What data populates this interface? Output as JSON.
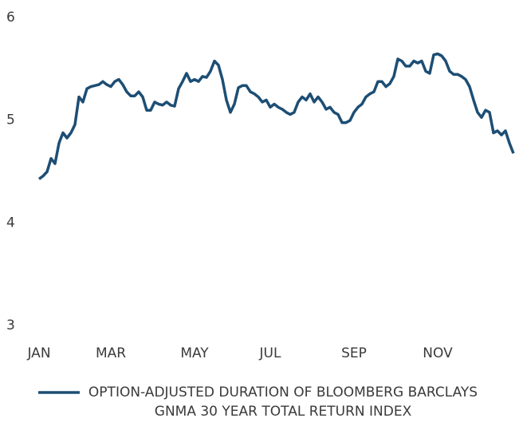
{
  "chart_data": {
    "type": "line",
    "categories": [
      "JAN",
      null,
      null,
      null,
      null,
      null,
      null,
      null,
      null,
      null,
      null,
      null,
      null,
      null,
      null,
      null,
      null,
      null,
      "MAR",
      null,
      null,
      null,
      null,
      null,
      null,
      null,
      null,
      null,
      null,
      null,
      null,
      null,
      null,
      null,
      null,
      null,
      null,
      null,
      null,
      "MAY",
      null,
      null,
      null,
      null,
      null,
      null,
      null,
      null,
      null,
      null,
      null,
      null,
      null,
      null,
      null,
      null,
      null,
      null,
      "JUL",
      null,
      null,
      null,
      null,
      null,
      null,
      null,
      null,
      null,
      null,
      null,
      null,
      null,
      null,
      null,
      null,
      null,
      null,
      null,
      null,
      "SEP",
      null,
      null,
      null,
      null,
      null,
      null,
      null,
      null,
      null,
      null,
      null,
      null,
      null,
      null,
      null,
      null,
      null,
      null,
      null,
      null,
      "NOV",
      null,
      null,
      null,
      null,
      null,
      null,
      null,
      null,
      null,
      null,
      null,
      null,
      null,
      null,
      null,
      null,
      null,
      null,
      null
    ],
    "series": [
      {
        "name": "OPTION-ADJUSTED DURATION OF BLOOMBERG BARCLAYS GNMA 30 YEAR TOTAL RETURN INDEX",
        "color": "#1d4e74",
        "values": [
          4.45,
          4.48,
          4.52,
          4.65,
          4.6,
          4.8,
          4.9,
          4.85,
          4.9,
          4.98,
          5.25,
          5.2,
          5.33,
          5.35,
          5.36,
          5.37,
          5.4,
          5.37,
          5.35,
          5.4,
          5.42,
          5.37,
          5.3,
          5.26,
          5.26,
          5.3,
          5.25,
          5.12,
          5.12,
          5.2,
          5.18,
          5.17,
          5.2,
          5.17,
          5.16,
          5.33,
          5.4,
          5.48,
          5.4,
          5.42,
          5.4,
          5.45,
          5.44,
          5.5,
          5.6,
          5.56,
          5.42,
          5.22,
          5.1,
          5.18,
          5.34,
          5.36,
          5.36,
          5.3,
          5.28,
          5.25,
          5.2,
          5.22,
          5.15,
          5.18,
          5.15,
          5.13,
          5.1,
          5.08,
          5.1,
          5.2,
          5.25,
          5.22,
          5.28,
          5.2,
          5.25,
          5.2,
          5.13,
          5.15,
          5.1,
          5.08,
          5.0,
          5.0,
          5.02,
          5.1,
          5.15,
          5.18,
          5.25,
          5.28,
          5.3,
          5.4,
          5.4,
          5.35,
          5.38,
          5.45,
          5.62,
          5.6,
          5.55,
          5.55,
          5.6,
          5.58,
          5.6,
          5.5,
          5.48,
          5.66,
          5.67,
          5.65,
          5.6,
          5.5,
          5.47,
          5.47,
          5.45,
          5.42,
          5.35,
          5.22,
          5.1,
          5.05,
          5.12,
          5.1,
          4.9,
          4.92,
          4.88,
          4.92,
          4.8,
          4.7
        ]
      }
    ],
    "ylim": [
      3,
      6
    ],
    "yticks": [
      3,
      4,
      5,
      6
    ],
    "grid": false
  }
}
